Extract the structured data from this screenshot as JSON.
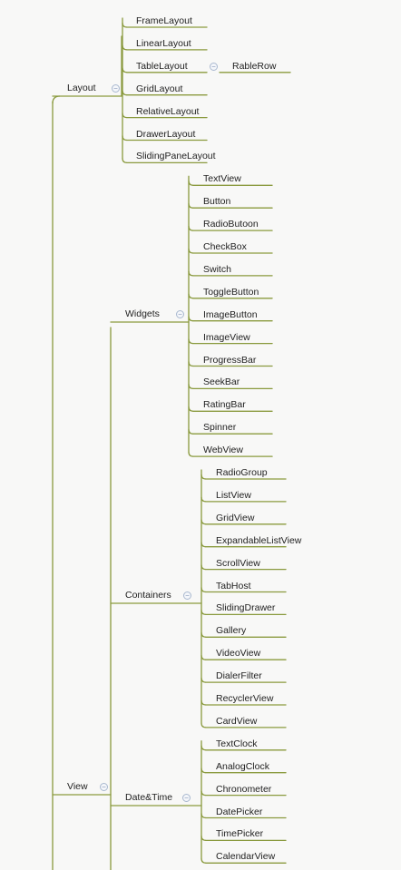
{
  "colors": {
    "branch": "#8a9a3e",
    "collapse": "#8094b4"
  },
  "icons": {
    "collapse": "minus-circle-icon"
  },
  "collapse_glyph": "−",
  "tree": [
    {
      "label": "Layout",
      "children": [
        {
          "label": "FrameLayout"
        },
        {
          "label": "LinearLayout"
        },
        {
          "label": "TableLayout",
          "children": [
            {
              "label": "RableRow"
            }
          ]
        },
        {
          "label": "GridLayout"
        },
        {
          "label": "RelativeLayout"
        },
        {
          "label": "DrawerLayout"
        },
        {
          "label": "SlidingPaneLayout"
        }
      ]
    },
    {
      "label": "View",
      "children": [
        {
          "label": "Widgets",
          "children": [
            {
              "label": "TextView"
            },
            {
              "label": "Button"
            },
            {
              "label": "RadioButoon"
            },
            {
              "label": "CheckBox"
            },
            {
              "label": "Switch"
            },
            {
              "label": "ToggleButton"
            },
            {
              "label": "ImageButton"
            },
            {
              "label": "ImageView"
            },
            {
              "label": "ProgressBar"
            },
            {
              "label": "SeekBar"
            },
            {
              "label": "RatingBar"
            },
            {
              "label": "Spinner"
            },
            {
              "label": "WebView"
            }
          ]
        },
        {
          "label": "Containers",
          "children": [
            {
              "label": "RadioGroup"
            },
            {
              "label": "ListView"
            },
            {
              "label": "GridView"
            },
            {
              "label": "ExpandableListView"
            },
            {
              "label": "ScrollView"
            },
            {
              "label": "TabHost"
            },
            {
              "label": "SlidingDrawer"
            },
            {
              "label": "Gallery"
            },
            {
              "label": "VideoView"
            },
            {
              "label": "DialerFilter"
            },
            {
              "label": "RecyclerView"
            },
            {
              "label": "CardView"
            }
          ]
        },
        {
          "label": "Date&Time",
          "children": [
            {
              "label": "TextClock"
            },
            {
              "label": "AnalogClock"
            },
            {
              "label": "Chronometer"
            },
            {
              "label": "DatePicker"
            },
            {
              "label": "TimePicker"
            },
            {
              "label": "CalendarView"
            }
          ]
        }
      ]
    }
  ]
}
